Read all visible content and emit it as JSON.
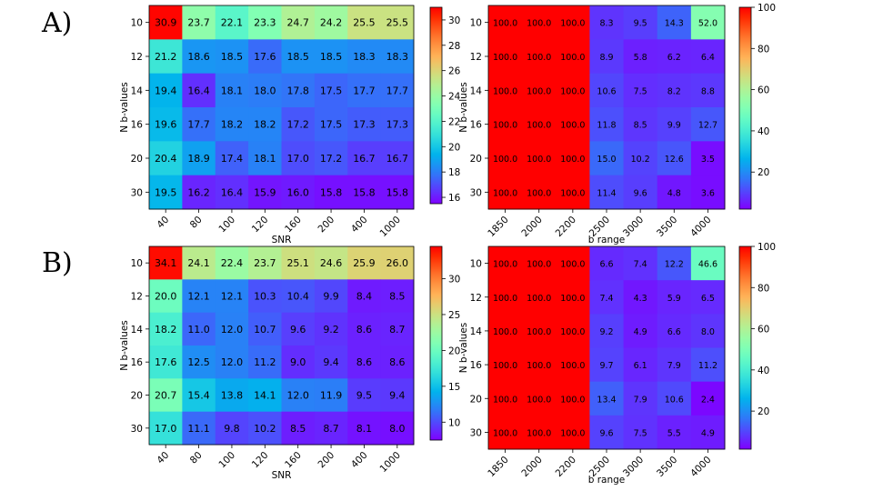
{
  "panels": [
    {
      "label": "A)"
    },
    {
      "label": "B)"
    }
  ],
  "colormap": [
    "#8000ff",
    "#6629fe",
    "#4c50fc",
    "#3176f8",
    "#1996f3",
    "#01b3ec",
    "#1acbe4",
    "#34e0da",
    "#4df0cf",
    "#66fbc3",
    "#80ffb4",
    "#99fba4",
    "#b3f093",
    "#cce080",
    "#e6cb6d",
    "#ffb358",
    "#ff9643",
    "#ff762d",
    "#ff5016",
    "#ff2900",
    "#ff0000"
  ],
  "chart_data": [
    {
      "type": "heatmap",
      "panel": "A)",
      "title": "",
      "xlabel": "SNR",
      "ylabel": "N b-values",
      "x_categories": [
        "40",
        "80",
        "100",
        "120",
        "160",
        "200",
        "400",
        "1000"
      ],
      "y_categories": [
        "10",
        "12",
        "14",
        "16",
        "20",
        "30"
      ],
      "values": [
        [
          30.9,
          23.7,
          22.1,
          23.3,
          24.7,
          24.2,
          25.5,
          25.5
        ],
        [
          21.2,
          18.6,
          18.5,
          17.6,
          18.5,
          18.5,
          18.3,
          18.3
        ],
        [
          19.4,
          16.4,
          18.1,
          18.0,
          17.8,
          17.5,
          17.7,
          17.7
        ],
        [
          19.6,
          17.7,
          18.2,
          18.2,
          17.2,
          17.5,
          17.3,
          17.3
        ],
        [
          20.4,
          18.9,
          17.4,
          18.1,
          17.0,
          17.2,
          16.7,
          16.7
        ],
        [
          19.5,
          16.2,
          16.4,
          15.9,
          16.0,
          15.8,
          15.8,
          15.8
        ]
      ],
      "vmin": 15.5,
      "vmax": 31.0,
      "colorbar_ticks": [
        16,
        18,
        20,
        22,
        24,
        26,
        28,
        30
      ]
    },
    {
      "type": "heatmap",
      "panel": "A)",
      "title": "",
      "xlabel": "b range",
      "ylabel": "N b-values",
      "x_categories": [
        "1850",
        "2000",
        "2200",
        "2500",
        "3000",
        "3500",
        "4000"
      ],
      "y_categories": [
        "10",
        "12",
        "14",
        "16",
        "20",
        "30"
      ],
      "values": [
        [
          100.0,
          100.0,
          100.0,
          8.3,
          9.5,
          14.3,
          52.0
        ],
        [
          100.0,
          100.0,
          100.0,
          8.9,
          5.8,
          6.2,
          6.4
        ],
        [
          100.0,
          100.0,
          100.0,
          10.6,
          7.5,
          8.2,
          8.8
        ],
        [
          100.0,
          100.0,
          100.0,
          11.8,
          8.5,
          9.9,
          12.7
        ],
        [
          100.0,
          100.0,
          100.0,
          15.0,
          10.2,
          12.6,
          3.5
        ],
        [
          100.0,
          100.0,
          100.0,
          11.4,
          9.6,
          4.8,
          3.6
        ]
      ],
      "vmin": 2,
      "vmax": 100,
      "colorbar_ticks": [
        20,
        40,
        60,
        80,
        100
      ]
    },
    {
      "type": "heatmap",
      "panel": "B)",
      "title": "",
      "xlabel": "SNR",
      "ylabel": "N b-values",
      "x_categories": [
        "40",
        "80",
        "100",
        "120",
        "160",
        "200",
        "400",
        "1000"
      ],
      "y_categories": [
        "10",
        "12",
        "14",
        "16",
        "20",
        "30"
      ],
      "values": [
        [
          34.1,
          24.1,
          22.4,
          23.7,
          25.1,
          24.6,
          25.9,
          26.0
        ],
        [
          20.0,
          12.1,
          12.1,
          10.3,
          10.4,
          9.9,
          8.4,
          8.5
        ],
        [
          18.2,
          11.0,
          12.0,
          10.7,
          9.6,
          9.2,
          8.6,
          8.7
        ],
        [
          17.6,
          12.5,
          12.0,
          11.2,
          9.0,
          9.4,
          8.6,
          8.6
        ],
        [
          20.7,
          15.4,
          13.8,
          14.1,
          12.0,
          11.9,
          9.5,
          9.4
        ],
        [
          17.0,
          11.1,
          9.8,
          10.2,
          8.5,
          8.7,
          8.1,
          8.0
        ]
      ],
      "vmin": 7.5,
      "vmax": 34.5,
      "colorbar_ticks": [
        10,
        15,
        20,
        25,
        30
      ]
    },
    {
      "type": "heatmap",
      "panel": "B)",
      "title": "",
      "xlabel": "b range",
      "ylabel": "N b-values",
      "x_categories": [
        "1850",
        "2000",
        "2200",
        "2500",
        "3000",
        "3500",
        "4000"
      ],
      "y_categories": [
        "10",
        "12",
        "14",
        "16",
        "20",
        "30"
      ],
      "values": [
        [
          100.0,
          100.0,
          100.0,
          6.6,
          7.4,
          12.2,
          46.6
        ],
        [
          100.0,
          100.0,
          100.0,
          7.4,
          4.3,
          5.9,
          6.5
        ],
        [
          100.0,
          100.0,
          100.0,
          9.2,
          4.9,
          6.6,
          8.0
        ],
        [
          100.0,
          100.0,
          100.0,
          9.7,
          6.1,
          7.9,
          11.2
        ],
        [
          100.0,
          100.0,
          100.0,
          13.4,
          7.9,
          10.6,
          2.4
        ],
        [
          100.0,
          100.0,
          100.0,
          9.6,
          7.5,
          5.5,
          4.9
        ]
      ],
      "vmin": 1.5,
      "vmax": 100,
      "colorbar_ticks": [
        20,
        40,
        60,
        80,
        100
      ]
    }
  ]
}
